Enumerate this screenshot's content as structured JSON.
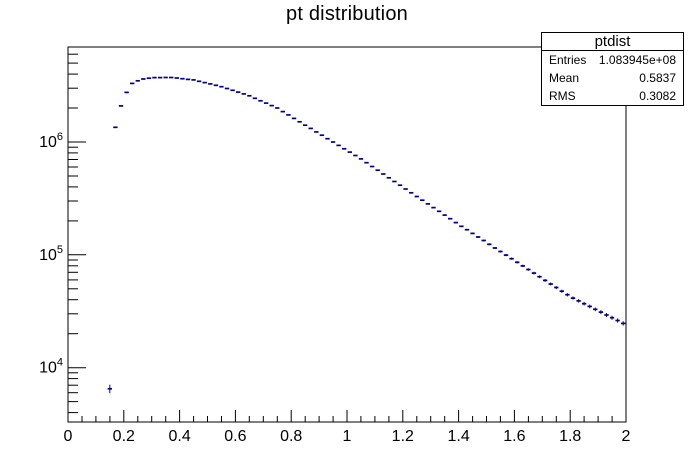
{
  "chart_data": {
    "type": "histogram",
    "title": "pt distribution",
    "xlabel": "",
    "ylabel": "",
    "x_range": [
      0,
      2
    ],
    "y_range": [
      3300,
      6950000
    ],
    "y_scale": "log",
    "grid": false,
    "legend": "none",
    "x_ticks_major": [
      0,
      0.2,
      0.4,
      0.6,
      0.8,
      1.0,
      1.2,
      1.4,
      1.6,
      1.8,
      2.0
    ],
    "x_tick_labels": [
      "0",
      "0.2",
      "0.4",
      "0.6",
      "0.8",
      "1",
      "1.2",
      "1.4",
      "1.6",
      "1.8",
      "2"
    ],
    "x_minor_step": 0.05,
    "y_tick_exponents": [
      4,
      5,
      6
    ],
    "bin_width": 0.02,
    "marker_color": "#000090",
    "axis_color": "#000000",
    "error_scale": 7,
    "bin_centers": [
      0.15,
      0.17,
      0.19,
      0.21,
      0.23,
      0.25,
      0.27,
      0.29,
      0.31,
      0.33,
      0.35,
      0.37,
      0.39,
      0.41,
      0.43,
      0.45,
      0.47,
      0.49,
      0.51,
      0.53,
      0.55,
      0.57,
      0.59,
      0.61,
      0.63,
      0.65,
      0.67,
      0.69,
      0.71,
      0.73,
      0.75,
      0.77,
      0.79,
      0.81,
      0.83,
      0.85,
      0.87,
      0.89,
      0.91,
      0.93,
      0.95,
      0.97,
      0.99,
      1.01,
      1.03,
      1.05,
      1.07,
      1.09,
      1.11,
      1.13,
      1.15,
      1.17,
      1.19,
      1.21,
      1.23,
      1.25,
      1.27,
      1.29,
      1.31,
      1.33,
      1.35,
      1.37,
      1.39,
      1.41,
      1.43,
      1.45,
      1.47,
      1.49,
      1.51,
      1.53,
      1.55,
      1.57,
      1.59,
      1.61,
      1.63,
      1.65,
      1.67,
      1.69,
      1.71,
      1.73,
      1.75,
      1.77,
      1.79,
      1.81,
      1.83,
      1.85,
      1.87,
      1.89,
      1.91,
      1.93,
      1.95,
      1.97,
      1.99
    ],
    "values": [
      6500,
      1350000,
      2090000,
      2750000,
      3310000,
      3490000,
      3620000,
      3680000,
      3720000,
      3720000,
      3730000,
      3730000,
      3690000,
      3640000,
      3590000,
      3550000,
      3450000,
      3360000,
      3270000,
      3180000,
      3090000,
      2980000,
      2870000,
      2770000,
      2670000,
      2570000,
      2440000,
      2320000,
      2210000,
      2100000,
      2000000,
      1860000,
      1740000,
      1620000,
      1510000,
      1410000,
      1320000,
      1230000,
      1150000,
      1070000,
      1000000,
      933000,
      871000,
      813000,
      759000,
      708000,
      656000,
      607000,
      562000,
      521000,
      482000,
      447000,
      414000,
      383000,
      355000,
      329000,
      305000,
      283000,
      262000,
      243000,
      225000,
      209000,
      193000,
      179000,
      167000,
      155000,
      144000,
      134000,
      124000,
      115000,
      107000,
      99500,
      92500,
      85900,
      79800,
      74100,
      68900,
      64000,
      59400,
      55200,
      51300,
      47600,
      44300,
      41400,
      39100,
      36900,
      34900,
      32900,
      31100,
      29300,
      27700,
      26200,
      24700
    ]
  },
  "stats_box": {
    "title": "ptdist",
    "rows": [
      {
        "label": "Entries",
        "value": "1.083945e+08"
      },
      {
        "label": "Mean",
        "value": "0.5837"
      },
      {
        "label": "RMS",
        "value": "0.3082"
      }
    ]
  }
}
